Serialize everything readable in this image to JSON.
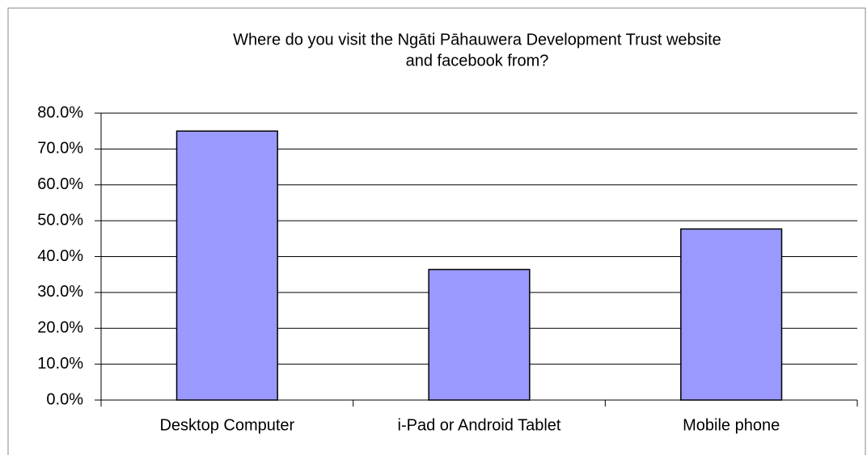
{
  "chart_data": {
    "type": "bar",
    "title": [
      "Where do you visit the Ngāti Pāhauwera Development Trust website",
      "and facebook from?"
    ],
    "categories": [
      "Desktop Computer",
      "i-Pad or Android Tablet",
      "Mobile phone"
    ],
    "values": [
      75.0,
      36.4,
      47.7
    ],
    "color": "#9999ff",
    "ylim": [
      0,
      80
    ],
    "yticks": [
      {
        "value": 0,
        "label": "0.0%"
      },
      {
        "value": 10,
        "label": "10.0%"
      },
      {
        "value": 20,
        "label": "20.0%"
      },
      {
        "value": 30,
        "label": "30.0%"
      },
      {
        "value": 40,
        "label": "40.0%"
      },
      {
        "value": 50,
        "label": "50.0%"
      },
      {
        "value": 60,
        "label": "60.0%"
      },
      {
        "value": 70,
        "label": "70.0%"
      },
      {
        "value": 80,
        "label": "80.0%"
      }
    ],
    "grid": true
  }
}
